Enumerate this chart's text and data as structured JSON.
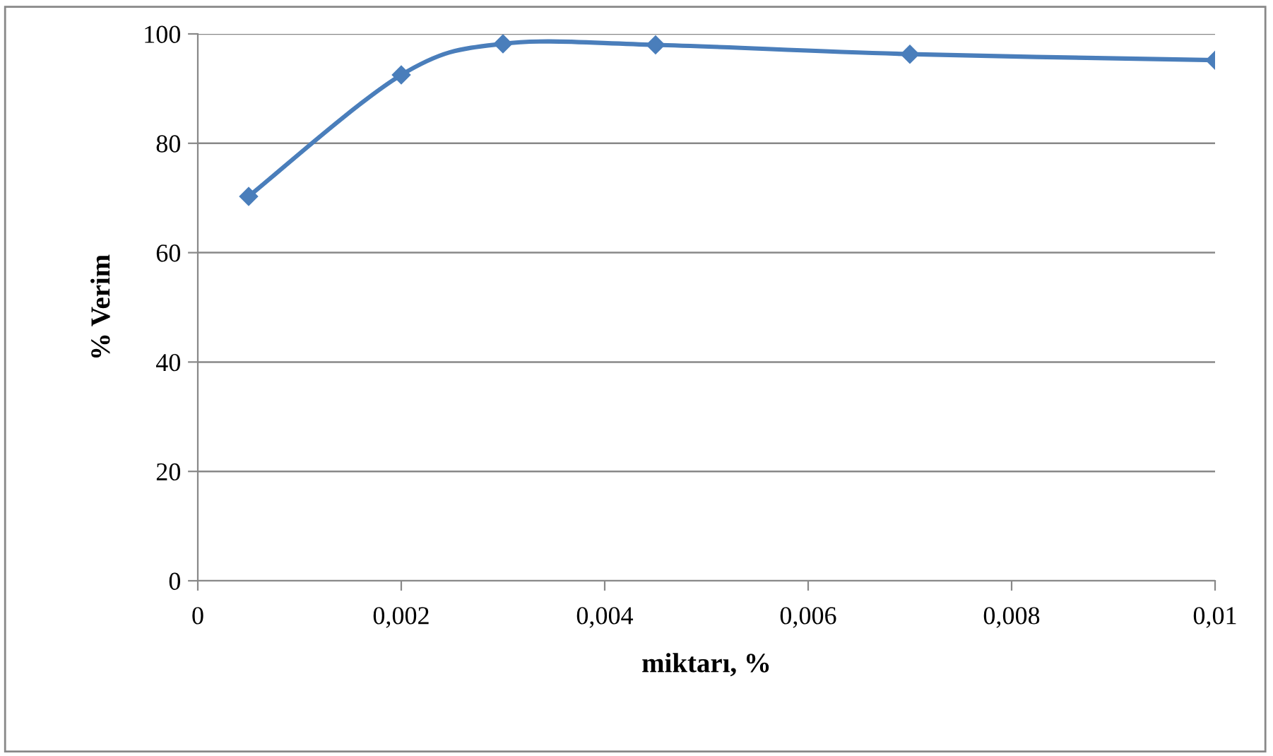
{
  "chart_data": {
    "type": "line",
    "xlabel": "miktarı, %",
    "ylabel": "% Verim",
    "x": [
      0.0005,
      0.002,
      0.003,
      0.0045,
      0.007,
      0.01
    ],
    "series": [
      {
        "color": "#4a7ebb",
        "values": [
          70.3,
          92.5,
          98.2,
          98.0,
          96.3,
          95.2
        ]
      }
    ],
    "xlim": [
      0,
      0.01
    ],
    "xticks": [
      0,
      {
        "value": 0.002,
        "label": "0,002"
      },
      {
        "value": 0.004,
        "label": "0,004"
      },
      {
        "value": 0.006,
        "label": "0,006"
      },
      {
        "value": 0.008,
        "label": "0,008"
      },
      {
        "value": 0.01,
        "label": "0,01"
      }
    ],
    "ylim": [
      0,
      100
    ],
    "yticks": [
      0,
      20,
      40,
      60,
      80,
      100
    ],
    "grid": "y",
    "marker": "diamond",
    "line_style": "solid",
    "legend": false
  }
}
